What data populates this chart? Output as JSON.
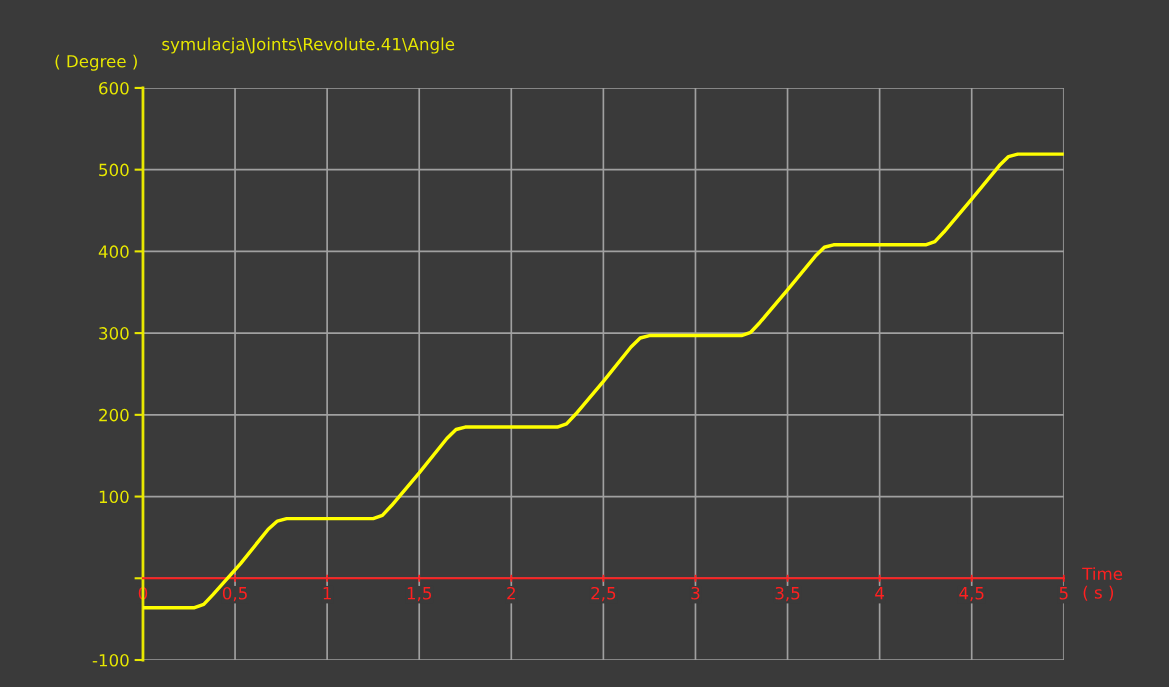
{
  "chart_data": {
    "type": "line",
    "title": "symulacja\\Joints\\Revolute.41\\Angle",
    "ylabel": "( Degree )",
    "xlabel": "Time\n( s )",
    "x": [
      0,
      0.28,
      0.33,
      0.38,
      0.53,
      0.68,
      0.73,
      0.78,
      1.25,
      1.3,
      1.35,
      1.5,
      1.65,
      1.7,
      1.75,
      2.25,
      2.3,
      2.35,
      2.5,
      2.65,
      2.7,
      2.75,
      3.25,
      3.3,
      3.35,
      3.5,
      3.65,
      3.7,
      3.75,
      4.25,
      4.3,
      4.35,
      4.5,
      4.65,
      4.7,
      4.75,
      5.0
    ],
    "series": [
      {
        "color": "#ffff00",
        "values": [
          -36,
          -36,
          -32,
          -20,
          18,
          60,
          70,
          73,
          73,
          77,
          89,
          129,
          171,
          182,
          185,
          185,
          189,
          201,
          241,
          283,
          294,
          297,
          297,
          301,
          313,
          353,
          394,
          405,
          408,
          408,
          412,
          424,
          464,
          505,
          516,
          519,
          519
        ]
      }
    ],
    "xlim": [
      0,
      5
    ],
    "ylim": [
      -100,
      600
    ],
    "xticks": [
      0,
      {
        "value": 0.5,
        "label": "0,5"
      },
      1,
      {
        "value": 1.5,
        "label": "1,5"
      },
      2,
      {
        "value": 2.5,
        "label": "2,5"
      },
      3,
      {
        "value": 3.5,
        "label": "3,5"
      },
      4,
      {
        "value": 4.5,
        "label": "4,5"
      },
      5
    ],
    "yticks": [
      -100,
      {
        "value": 0,
        "label": null
      },
      100,
      200,
      300,
      400,
      500,
      600
    ],
    "grid": true,
    "line_style": "solid"
  }
}
